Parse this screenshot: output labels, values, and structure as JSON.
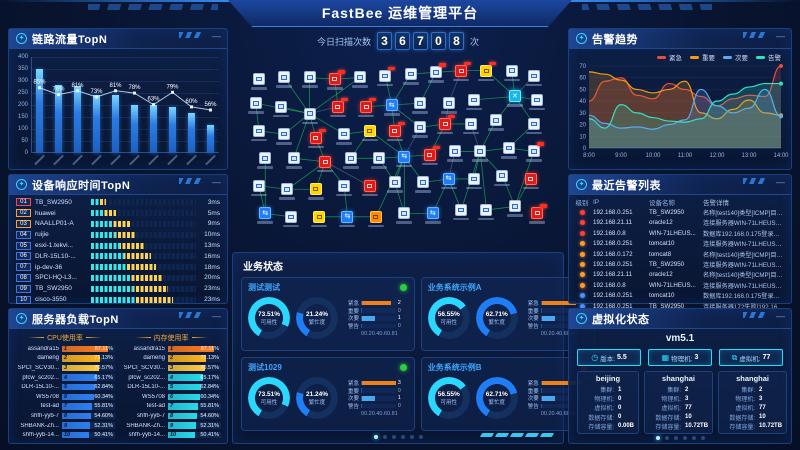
{
  "header": {
    "title": "FastBee 运维管理平台"
  },
  "scan": {
    "label": "今日扫描次数",
    "digits": [
      "3",
      "6",
      "7",
      "0",
      "8"
    ],
    "unit": "次"
  },
  "panels": {
    "link_traffic_title": "链路流量TopN",
    "device_response_title": "设备响应时间TopN",
    "server_load_title": "服务器负载TopN",
    "alarm_trend_title": "告警趋势",
    "alarm_list_title": "最近告警列表",
    "virtualization_title": "虚拟化状态",
    "business_title": "业务状态"
  },
  "chart_data": [
    {
      "id": "link_traffic",
      "type": "bar",
      "title": "链路流量TopN",
      "categories": [
        "",
        "",
        "",
        "",
        "",
        "",
        "",
        "",
        "",
        ""
      ],
      "values": [
        350,
        285,
        280,
        240,
        240,
        200,
        200,
        190,
        165,
        115
      ],
      "line_percent": [
        85,
        76,
        81,
        73,
        81,
        78,
        63,
        79,
        60,
        56
      ],
      "ylim": [
        0,
        400
      ],
      "yticks": [
        400,
        350,
        300,
        250,
        200,
        150,
        100,
        50,
        0
      ],
      "note": "x tick labels rotated and illegible in source"
    },
    {
      "id": "alarm_trend",
      "type": "line",
      "title": "告警趋势",
      "x_labels": [
        "8:00",
        "9:00",
        "10:00",
        "11:00",
        "12:00",
        "13:00",
        "14:00"
      ],
      "ylim": [
        0,
        70
      ],
      "yticks": [
        0,
        10,
        20,
        30,
        40,
        50,
        60,
        70
      ],
      "legend_position": "top-right",
      "series": [
        {
          "name": "紧急",
          "color": "#e84c3d",
          "values": [
            40,
            57,
            60,
            45,
            42,
            55,
            50,
            44,
            36,
            42,
            45,
            44,
            70
          ]
        },
        {
          "name": "重要",
          "color": "#f39c12",
          "values": [
            65,
            63,
            58,
            50,
            47,
            50,
            57,
            30,
            25,
            33,
            41,
            30,
            28
          ]
        },
        {
          "name": "次要",
          "color": "#5aa9f5",
          "values": [
            28,
            21,
            17,
            18,
            16,
            20,
            24,
            50,
            36,
            30,
            34,
            50,
            27
          ]
        },
        {
          "name": "告警",
          "color": "#35e0c0",
          "values": [
            25,
            17,
            37,
            30,
            26,
            23,
            22,
            25,
            40,
            46,
            52,
            55,
            55
          ]
        }
      ]
    },
    {
      "id": "cpu_load",
      "type": "bar",
      "title": "CPU使用率",
      "unit": "%",
      "categories": [
        "assandra15",
        "dameng",
        "SPCI_SCV30...",
        "pfcw_sc202...",
        "DLR-15L10-...",
        "WS5708",
        "test-ad",
        "shfh-yyb-7",
        "SHBANK-Zh...",
        "shfh-yyb-14..."
      ],
      "values": [
        87.11,
        71.13,
        70.57,
        65.17,
        62.84,
        60.34,
        55.81,
        54.6,
        52.31,
        50.41
      ]
    },
    {
      "id": "mem_load",
      "type": "bar",
      "title": "内存使用率",
      "unit": "%",
      "categories": [
        "assandra15",
        "dameng",
        "SPCI_SCV30...",
        "pfcw_sc202...",
        "DLR-15L10-...",
        "WS5708",
        "test-ad",
        "shfh-yyb-7",
        "SHBANK-Zh...",
        "shfh-yyb-14..."
      ],
      "values": [
        87.11,
        71.13,
        70.57,
        65.17,
        62.84,
        60.34,
        55.81,
        54.6,
        52.31,
        50.41
      ]
    }
  ],
  "device_response": {
    "rows": [
      {
        "rank": "01",
        "name": "TB_SW2950",
        "ms": "3ms",
        "level": "red",
        "fill": 14
      },
      {
        "rank": "02",
        "name": "huawei",
        "ms": "5ms",
        "level": "orange",
        "fill": 24
      },
      {
        "rank": "03",
        "name": "NAALLP01-A",
        "ms": "9ms",
        "level": "orange",
        "fill": 38
      },
      {
        "rank": "04",
        "name": "ruijie",
        "ms": "10ms",
        "level": "blue",
        "fill": 43
      },
      {
        "rank": "05",
        "name": "esxi-1.tekvi...",
        "ms": "13ms",
        "level": "blue",
        "fill": 50
      },
      {
        "rank": "06",
        "name": "DLR-15L10-...",
        "ms": "16ms",
        "level": "blue",
        "fill": 57
      },
      {
        "rank": "07",
        "name": "ip-dev-36",
        "ms": "18ms",
        "level": "blue",
        "fill": 62
      },
      {
        "rank": "08",
        "name": "SPCI-HQ-L3...",
        "ms": "20ms",
        "level": "blue",
        "fill": 68
      },
      {
        "rank": "09",
        "name": "TB_SW2950",
        "ms": "23ms",
        "level": "blue",
        "fill": 73
      },
      {
        "rank": "10",
        "name": "cisco-3550",
        "ms": "23ms",
        "level": "blue",
        "fill": 78
      }
    ]
  },
  "server_load": {
    "cpu_label": "CPU使用率",
    "mem_label": "内存使用率",
    "bar_colors_cpu": [
      "#ff7a1a",
      "#ffb31a",
      "#ffc93c",
      "#2e7ef0",
      "#2e7ef0",
      "#2e7ef0",
      "#2e7ef0",
      "#2e7ef0",
      "#2e7ef0",
      "#2e7ef0"
    ],
    "bar_colors_mem": [
      "#ff7a1a",
      "#ffb31a",
      "#ffc93c",
      "#29d8e8",
      "#29d8e8",
      "#29d8e8",
      "#29d8e8",
      "#29d8e8",
      "#29d8e8",
      "#29d8e8"
    ]
  },
  "business": {
    "title": "业务状态",
    "gauge_avail_label": "可用性",
    "gauge_busy_label": "繁忙度",
    "bar_categories": [
      "紧急",
      "重要",
      "次要",
      "警告"
    ],
    "axis_ticks": [
      "0",
      "0.2",
      "0.4",
      "0.6",
      "0.8",
      "1"
    ],
    "cards": [
      {
        "title": "测试测试",
        "status": "green",
        "avail": 73.51,
        "busy": 21.24,
        "bars": [
          2,
          0,
          1,
          0
        ]
      },
      {
        "title": "业务系统示例A",
        "status": "red",
        "avail": 56.55,
        "busy": 62.71,
        "bars": [
          3,
          0,
          1,
          0
        ]
      },
      {
        "title": "测试1029",
        "status": "green",
        "avail": 73.51,
        "busy": 21.24,
        "bars": [
          3,
          0,
          1,
          0
        ]
      },
      {
        "title": "业务系统示例B",
        "status": "red",
        "avail": 56.55,
        "busy": 62.71,
        "bars": [
          3,
          0,
          1,
          0
        ]
      }
    ],
    "pagination_dots": 6
  },
  "alarm_list": {
    "headers": [
      "级别",
      "IP",
      "设备名称",
      "告警详情"
    ],
    "rows": [
      {
        "level": "red",
        "ip": "192.168.0.251",
        "name": "TB_SW2950",
        "detail": "名称[test140]类型[ICMP]目标[192.168..."
      },
      {
        "level": "red",
        "ip": "192.168.21.11",
        "name": "oracle12",
        "detail": "连接服务器WIN-71LHEUSP9OD.testad..."
      },
      {
        "level": "red",
        "ip": "192.168.0.8",
        "name": "WIN-71LHEUS...",
        "detail": "数据库192.168.0.175登录失败[192.168..."
      },
      {
        "level": "orange",
        "ip": "192.168.0.251",
        "name": "tomcat10",
        "detail": "连接服务器WIN-71LHEUSP9OD.testad..."
      },
      {
        "level": "orange",
        "ip": "192.168.0.172",
        "name": "tomcat8",
        "detail": "名称[test140]类型[ICMP]目标[192.168..."
      },
      {
        "level": "orange",
        "ip": "192.168.0.251",
        "name": "TB_SW2950",
        "detail": "连接服务器WIN-71LHEUSP9OD.testad..."
      },
      {
        "level": "orange",
        "ip": "192.168.21.11",
        "name": "oracle12",
        "detail": "名称[test140]类型[ICMP]目标[192.168..."
      },
      {
        "level": "orange",
        "ip": "192.168.0.8",
        "name": "WIN-71LHEUS...",
        "detail": "连接服务器WIN-71LHEUSP9OD.testad..."
      },
      {
        "level": "blue",
        "ip": "192.168.0.251",
        "name": "tomcat10",
        "detail": "数据库192.168.0.175登录失败[192.168..."
      },
      {
        "level": "blue",
        "ip": "192.168.0.251",
        "name": "TB_SW2950",
        "detail": "连接服务器172失败[192.168.0.172][连..."
      }
    ]
  },
  "virtualization": {
    "vm_title": "vm5.1",
    "chips": [
      {
        "icon": "clock-icon",
        "label": "版本:",
        "value": "5.5"
      },
      {
        "icon": "grid-icon",
        "label": "物理机:",
        "value": "3"
      },
      {
        "icon": "monitor-icon",
        "label": "虚拟机:",
        "value": "77"
      }
    ],
    "site_labels": [
      "集群:",
      "物理机:",
      "虚拟机:",
      "数据存储:",
      "存储容量:"
    ],
    "sites": [
      {
        "name": "beijing",
        "values": [
          "1",
          "0",
          "0",
          "0",
          "0.00B"
        ]
      },
      {
        "name": "shanghai",
        "values": [
          "2",
          "3",
          "77",
          "10",
          "10.72TB"
        ]
      },
      {
        "name": "shanghai",
        "values": [
          "2",
          "3",
          "77",
          "10",
          "10.72TB"
        ]
      }
    ],
    "pagination_dots": 6
  },
  "topology": {
    "node_types": {
      "0": "host-white",
      "1": "alarm-red",
      "2": "device-blue",
      "3": "switch-cyan",
      "4": "warn-yellow",
      "5": "warn-orange"
    },
    "nodes": [
      [
        6,
        10,
        0
      ],
      [
        14,
        9,
        0
      ],
      [
        22,
        9,
        0
      ],
      [
        30,
        10,
        1,
        1
      ],
      [
        38,
        9,
        0
      ],
      [
        46,
        8,
        0,
        1
      ],
      [
        54,
        7,
        0
      ],
      [
        62,
        6,
        0,
        1
      ],
      [
        70,
        5,
        1,
        1
      ],
      [
        78,
        5,
        4,
        1
      ],
      [
        86,
        5,
        0
      ],
      [
        93,
        8,
        0
      ],
      [
        5,
        24,
        0
      ],
      [
        13,
        26,
        0
      ],
      [
        22,
        30,
        0
      ],
      [
        31,
        26,
        1,
        1
      ],
      [
        40,
        26,
        1,
        1
      ],
      [
        48,
        25,
        2
      ],
      [
        57,
        24,
        0
      ],
      [
        66,
        24,
        0
      ],
      [
        74,
        22,
        0
      ],
      [
        87,
        20,
        3
      ],
      [
        94,
        22,
        0
      ],
      [
        6,
        40,
        0
      ],
      [
        14,
        42,
        0
      ],
      [
        24,
        44,
        1,
        1
      ],
      [
        33,
        42,
        0
      ],
      [
        41,
        40,
        4
      ],
      [
        49,
        40,
        1,
        1
      ],
      [
        57,
        38,
        0
      ],
      [
        65,
        36,
        1,
        1
      ],
      [
        73,
        36,
        0
      ],
      [
        81,
        34,
        0
      ],
      [
        93,
        36,
        0
      ],
      [
        8,
        56,
        0
      ],
      [
        17,
        56,
        0
      ],
      [
        27,
        58,
        1
      ],
      [
        35,
        56,
        0
      ],
      [
        44,
        56,
        0
      ],
      [
        52,
        55,
        2
      ],
      [
        60,
        54,
        1,
        1
      ],
      [
        68,
        52,
        0
      ],
      [
        76,
        52,
        0
      ],
      [
        85,
        50,
        0
      ],
      [
        93,
        52,
        0,
        1
      ],
      [
        6,
        72,
        0
      ],
      [
        15,
        74,
        0
      ],
      [
        24,
        74,
        4
      ],
      [
        33,
        72,
        0
      ],
      [
        41,
        72,
        1
      ],
      [
        49,
        70,
        0
      ],
      [
        58,
        70,
        0
      ],
      [
        66,
        68,
        2
      ],
      [
        74,
        68,
        0
      ],
      [
        83,
        66,
        0
      ],
      [
        92,
        68,
        1
      ],
      [
        8,
        88,
        2
      ],
      [
        16,
        90,
        0
      ],
      [
        25,
        90,
        4
      ],
      [
        34,
        90,
        2
      ],
      [
        43,
        90,
        5
      ],
      [
        52,
        88,
        0
      ],
      [
        61,
        88,
        2
      ],
      [
        70,
        86,
        0
      ],
      [
        78,
        86,
        0
      ],
      [
        87,
        84,
        0
      ],
      [
        94,
        88,
        1,
        1
      ]
    ],
    "edges": [
      [
        15,
        3
      ],
      [
        15,
        5
      ],
      [
        15,
        13
      ],
      [
        15,
        14
      ],
      [
        15,
        16,
        1
      ],
      [
        15,
        25
      ],
      [
        15,
        26
      ],
      [
        15,
        27
      ],
      [
        15,
        36
      ],
      [
        15,
        2
      ],
      [
        18,
        6
      ],
      [
        18,
        7
      ],
      [
        18,
        17
      ],
      [
        18,
        19
      ],
      [
        18,
        30
      ],
      [
        18,
        29
      ],
      [
        22,
        10
      ],
      [
        22,
        11
      ],
      [
        22,
        21
      ],
      [
        22,
        23
      ],
      [
        22,
        33
      ],
      [
        22,
        34
      ],
      [
        22,
        12,
        1
      ],
      [
        40,
        28
      ],
      [
        40,
        29
      ],
      [
        40,
        39
      ],
      [
        40,
        41
      ],
      [
        40,
        51
      ],
      [
        40,
        52
      ],
      [
        40,
        61
      ],
      [
        40,
        62
      ],
      [
        40,
        30,
        1
      ],
      [
        43,
        33
      ],
      [
        43,
        42
      ],
      [
        43,
        44
      ],
      [
        43,
        54
      ],
      [
        43,
        55
      ],
      [
        43,
        64
      ],
      [
        43,
        65
      ],
      [
        43,
        32,
        1
      ],
      [
        37,
        26
      ],
      [
        37,
        36
      ],
      [
        37,
        47
      ],
      [
        37,
        48
      ],
      [
        37,
        49
      ],
      [
        37,
        50,
        1
      ],
      [
        53,
        52
      ],
      [
        53,
        54
      ],
      [
        53,
        63
      ],
      [
        53,
        64
      ],
      [
        53,
        42,
        1
      ],
      [
        57,
        46
      ],
      [
        57,
        58
      ],
      [
        57,
        35
      ],
      [
        60,
        59
      ],
      [
        60,
        61
      ],
      [
        60,
        49
      ],
      [
        31,
        30
      ],
      [
        31,
        32
      ],
      [
        31,
        41
      ],
      [
        31,
        20,
        1
      ],
      [
        66,
        55
      ],
      [
        66,
        65
      ],
      [
        66,
        56
      ],
      [
        66,
        45
      ],
      [
        9,
        8
      ],
      [
        9,
        10
      ],
      [
        9,
        20,
        1
      ],
      [
        4,
        3
      ],
      [
        4,
        5
      ],
      [
        4,
        16
      ],
      [
        44,
        34
      ],
      [
        44,
        45
      ],
      [
        62,
        63
      ],
      [
        62,
        51
      ],
      [
        47,
        46
      ],
      [
        47,
        48
      ],
      [
        24,
        13
      ],
      [
        24,
        25
      ],
      [
        28,
        27
      ],
      [
        28,
        38
      ],
      [
        39,
        38
      ],
      [
        39,
        51
      ],
      [
        8,
        7
      ],
      [
        8,
        19
      ]
    ]
  },
  "colors": {
    "accent_cyan": "#35d2ff",
    "bar_blue": "#2a7be4",
    "seg_cyan": "#37e6e6",
    "seg_yellow": "#ffd34d",
    "level_red": "#ff4136",
    "level_orange": "#ff9b2e",
    "level_blue": "#4a90f5",
    "status_green": "#2ecc40",
    "status_red": "#ff4132",
    "edge_green": "#19b955"
  }
}
